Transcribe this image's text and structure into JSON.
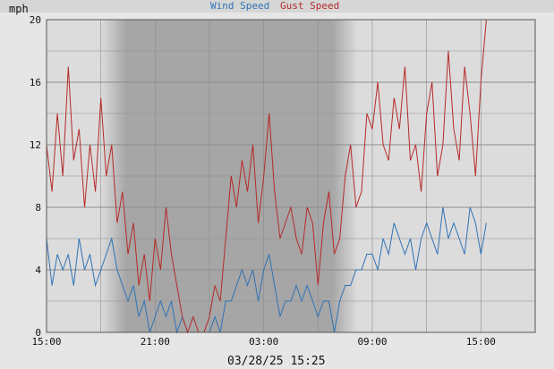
{
  "chart_data": {
    "type": "line",
    "ylabel": "mph",
    "ylim": [
      0,
      20
    ],
    "yticks": [
      0,
      4,
      8,
      12,
      16,
      20
    ],
    "x_range_hours": [
      0,
      27
    ],
    "x_axis_start": "15:00",
    "xticks": [
      {
        "hour": 0,
        "label": "15:00"
      },
      {
        "hour": 6,
        "label": "21:00"
      },
      {
        "hour": 12,
        "label": "03:00"
      },
      {
        "hour": 18,
        "label": "09:00"
      },
      {
        "hour": 24,
        "label": "15:00"
      }
    ],
    "grid": true,
    "legend_position": "top-center",
    "timestamp": "03/28/25 15:25",
    "night_shading": {
      "dark_start_hour": 4.4,
      "dark_end_hour": 15.8
    },
    "colors": {
      "wind": "#2f72b5",
      "gust": "#b52a2a",
      "plot_bg": "#dcdcdc",
      "night": "#a6a6a6"
    },
    "series": [
      {
        "name": "Wind Speed",
        "key": "wind",
        "x": [
          0.0,
          0.3,
          0.6,
          0.9,
          1.2,
          1.5,
          1.8,
          2.1,
          2.4,
          2.7,
          3.0,
          3.3,
          3.6,
          3.9,
          4.2,
          4.5,
          4.8,
          5.1,
          5.4,
          5.7,
          6.0,
          6.3,
          6.6,
          6.9,
          7.2,
          7.5,
          7.8,
          8.1,
          8.4,
          8.7,
          9.0,
          9.3,
          9.6,
          9.9,
          10.2,
          10.5,
          10.8,
          11.1,
          11.4,
          11.7,
          12.0,
          12.3,
          12.6,
          12.9,
          13.2,
          13.5,
          13.8,
          14.1,
          14.4,
          14.7,
          15.0,
          15.3,
          15.6,
          15.9,
          16.2,
          16.5,
          16.8,
          17.1,
          17.4,
          17.7,
          18.0,
          18.3,
          18.6,
          18.9,
          19.2,
          19.5,
          19.8,
          20.1,
          20.4,
          20.7,
          21.0,
          21.3,
          21.6,
          21.9,
          22.2,
          22.5,
          22.8,
          23.1,
          23.4,
          23.7,
          24.0,
          24.3
        ],
        "values": [
          6,
          3,
          5,
          4,
          5,
          3,
          6,
          4,
          5,
          3,
          4,
          5,
          6,
          4,
          3,
          2,
          3,
          1,
          2,
          0,
          1,
          2,
          1,
          2,
          0,
          1,
          0,
          0,
          0,
          0,
          0,
          1,
          0,
          2,
          2,
          3,
          4,
          3,
          4,
          2,
          4,
          5,
          3,
          1,
          2,
          2,
          3,
          2,
          3,
          2,
          1,
          2,
          2,
          0,
          2,
          3,
          3,
          4,
          4,
          5,
          5,
          4,
          6,
          5,
          7,
          6,
          5,
          6,
          4,
          6,
          7,
          6,
          5,
          8,
          6,
          7,
          6,
          5,
          8,
          7,
          5,
          7
        ]
      },
      {
        "name": "Gust Speed",
        "key": "gust",
        "x": [
          0.0,
          0.3,
          0.6,
          0.9,
          1.2,
          1.5,
          1.8,
          2.1,
          2.4,
          2.7,
          3.0,
          3.3,
          3.6,
          3.9,
          4.2,
          4.5,
          4.8,
          5.1,
          5.4,
          5.7,
          6.0,
          6.3,
          6.6,
          6.9,
          7.2,
          7.5,
          7.8,
          8.1,
          8.4,
          8.7,
          9.0,
          9.3,
          9.6,
          9.9,
          10.2,
          10.5,
          10.8,
          11.1,
          11.4,
          11.7,
          12.0,
          12.3,
          12.6,
          12.9,
          13.2,
          13.5,
          13.8,
          14.1,
          14.4,
          14.7,
          15.0,
          15.3,
          15.6,
          15.9,
          16.2,
          16.5,
          16.8,
          17.1,
          17.4,
          17.7,
          18.0,
          18.3,
          18.6,
          18.9,
          19.2,
          19.5,
          19.8,
          20.1,
          20.4,
          20.7,
          21.0,
          21.3,
          21.6,
          21.9,
          22.2,
          22.5,
          22.8,
          23.1,
          23.4,
          23.7,
          24.0,
          24.3
        ],
        "values": [
          12,
          9,
          14,
          10,
          17,
          11,
          13,
          8,
          12,
          9,
          15,
          10,
          12,
          7,
          9,
          5,
          7,
          3,
          5,
          2,
          6,
          4,
          8,
          5,
          3,
          1,
          0,
          1,
          0,
          0,
          1,
          3,
          2,
          6,
          10,
          8,
          11,
          9,
          12,
          7,
          10,
          14,
          9,
          6,
          7,
          8,
          6,
          5,
          8,
          7,
          3,
          7,
          9,
          5,
          6,
          10,
          12,
          8,
          9,
          14,
          13,
          16,
          12,
          11,
          15,
          13,
          17,
          11,
          12,
          9,
          14,
          16,
          10,
          12,
          18,
          13,
          11,
          17,
          14,
          10,
          16,
          20
        ]
      }
    ]
  }
}
